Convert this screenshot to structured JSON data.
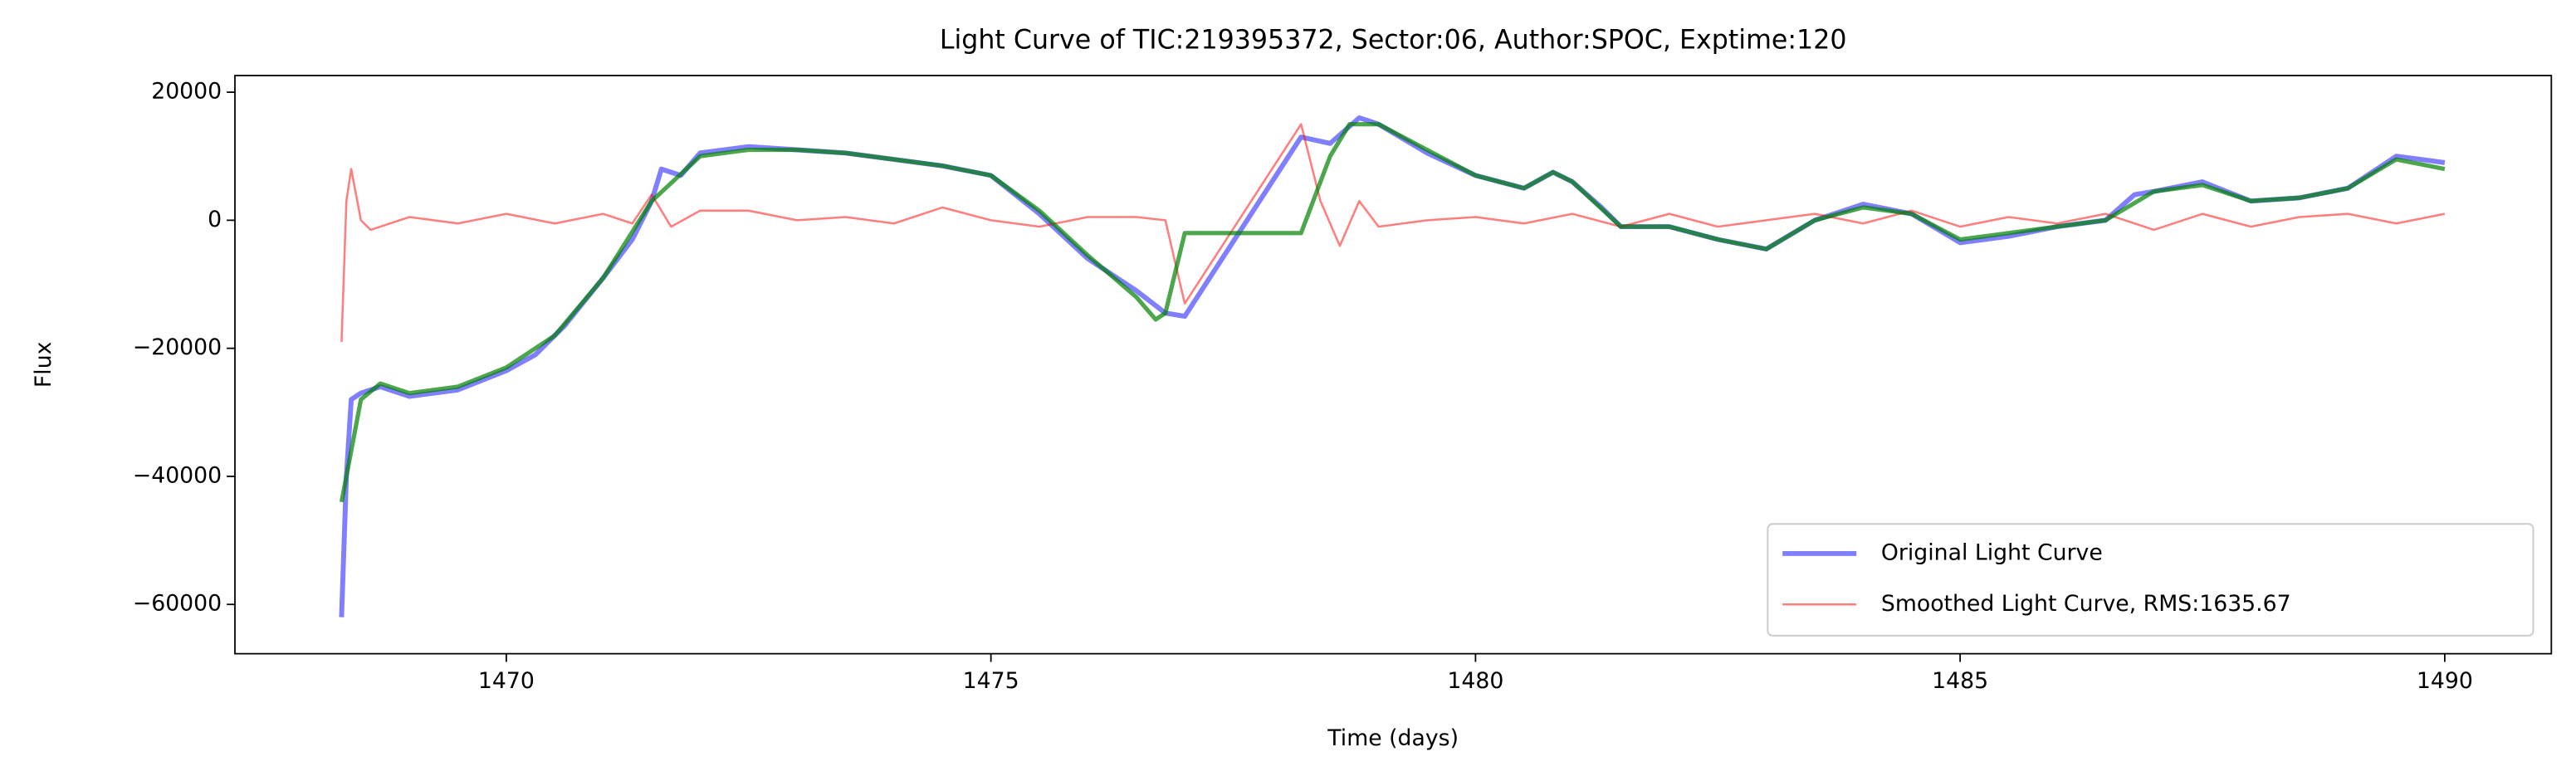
{
  "chart_data": {
    "type": "line",
    "title": "Light Curve of TIC:219395372, Sector:06, Author:SPOC, Exptime:120",
    "x_label": "Time (days)",
    "y_label": "Flux",
    "xlim": [
      1467.2,
      1491.1
    ],
    "ylim": [
      -67700,
      22600
    ],
    "xticks": [
      1470,
      1475,
      1480,
      1485,
      1490
    ],
    "yticks": [
      {
        "value": -60000,
        "label": "−60000"
      },
      {
        "value": -40000,
        "label": "−40000"
      },
      {
        "value": -20000,
        "label": "−20000"
      },
      0,
      20000
    ],
    "legend": "lower right",
    "series": [
      {
        "name": "Original Light Curve",
        "color": "#0000ff",
        "alpha": 0.5,
        "x": [
          1468.3,
          1468.35,
          1468.4,
          1468.5,
          1468.7,
          1469.0,
          1469.5,
          1470.0,
          1470.3,
          1470.6,
          1471.0,
          1471.3,
          1471.5,
          1471.6,
          1471.8,
          1472.0,
          1472.5,
          1473.0,
          1473.5,
          1474.0,
          1474.5,
          1475.0,
          1475.5,
          1476.0,
          1476.5,
          1476.8,
          1477.0,
          1478.2,
          1478.5,
          1478.8,
          1479.0,
          1479.5,
          1480.0,
          1480.5,
          1480.8,
          1481.0,
          1481.3,
          1481.5,
          1482.0,
          1482.5,
          1483.0,
          1483.5,
          1484.0,
          1484.5,
          1485.0,
          1485.5,
          1486.0,
          1486.5,
          1486.8,
          1487.0,
          1487.5,
          1488.0,
          1488.5,
          1489.0,
          1489.5,
          1490.0
        ],
        "values": [
          -62000,
          -40000,
          -28000,
          -27000,
          -26000,
          -27500,
          -26500,
          -23500,
          -21000,
          -16500,
          -9000,
          -3000,
          3000,
          8000,
          7000,
          10500,
          11500,
          11000,
          10500,
          9500,
          8500,
          7000,
          1000,
          -6000,
          -11000,
          -14500,
          -15000,
          13000,
          12000,
          16000,
          15000,
          10500,
          7000,
          5000,
          7500,
          6000,
          2000,
          -1000,
          -1000,
          -3000,
          -4500,
          0,
          2500,
          1000,
          -3500,
          -2500,
          -1000,
          0,
          4000,
          4500,
          6000,
          3000,
          3500,
          5000,
          10000,
          9000
        ]
      },
      {
        "name": "Smoothed Light Curve, RMS:1635.67",
        "color": "#ff0000",
        "alpha": 0.5,
        "x": [
          1468.3,
          1468.35,
          1468.4,
          1468.5,
          1468.6,
          1469.0,
          1469.5,
          1470.0,
          1470.5,
          1471.0,
          1471.3,
          1471.5,
          1471.7,
          1472.0,
          1472.5,
          1473.0,
          1473.5,
          1474.0,
          1474.5,
          1475.0,
          1475.5,
          1476.0,
          1476.5,
          1476.8,
          1477.0,
          1478.2,
          1478.4,
          1478.6,
          1478.8,
          1479.0,
          1479.5,
          1480.0,
          1480.5,
          1481.0,
          1481.5,
          1482.0,
          1482.5,
          1483.0,
          1483.5,
          1484.0,
          1484.5,
          1485.0,
          1485.5,
          1486.0,
          1486.5,
          1487.0,
          1487.5,
          1488.0,
          1488.5,
          1489.0,
          1489.5,
          1490.0
        ],
        "values": [
          -19000,
          3000,
          8000,
          0,
          -1500,
          500,
          -500,
          1000,
          -500,
          1000,
          -500,
          4000,
          -1000,
          1500,
          1500,
          0,
          500,
          -500,
          2000,
          0,
          -1000,
          500,
          500,
          0,
          -13000,
          15000,
          3000,
          -4000,
          3000,
          -1000,
          0,
          500,
          -500,
          1000,
          -1000,
          1000,
          -1000,
          0,
          1000,
          -500,
          1500,
          -1000,
          500,
          -500,
          1000,
          -1500,
          1000,
          -1000,
          500,
          1000,
          -500,
          1000
        ]
      },
      {
        "color": "#008000",
        "alpha": 0.7,
        "x": [
          1468.3,
          1468.5,
          1468.7,
          1469.0,
          1469.5,
          1470.0,
          1470.5,
          1471.0,
          1471.5,
          1472.0,
          1472.5,
          1473.0,
          1473.5,
          1474.0,
          1474.5,
          1475.0,
          1475.5,
          1476.0,
          1476.5,
          1476.7,
          1476.8,
          1477.0,
          1478.2,
          1478.5,
          1478.7,
          1479.0,
          1479.5,
          1480.0,
          1480.5,
          1480.8,
          1481.0,
          1481.5,
          1482.0,
          1482.5,
          1483.0,
          1483.5,
          1484.0,
          1484.5,
          1485.0,
          1485.5,
          1486.0,
          1486.5,
          1487.0,
          1487.5,
          1488.0,
          1488.5,
          1489.0,
          1489.5,
          1490.0
        ],
        "values": [
          -44000,
          -28000,
          -25500,
          -27000,
          -26000,
          -23000,
          -18000,
          -9000,
          3000,
          10000,
          11000,
          11000,
          10500,
          9500,
          8500,
          7000,
          1500,
          -5500,
          -12000,
          -15500,
          -14500,
          -2000,
          -2000,
          10000,
          15000,
          15000,
          11000,
          7000,
          5000,
          7500,
          6000,
          -1000,
          -1000,
          -3000,
          -4500,
          0,
          2000,
          1000,
          -3000,
          -2000,
          -1000,
          0,
          4500,
          5500,
          3000,
          3500,
          5000,
          9500,
          8000
        ]
      }
    ]
  }
}
